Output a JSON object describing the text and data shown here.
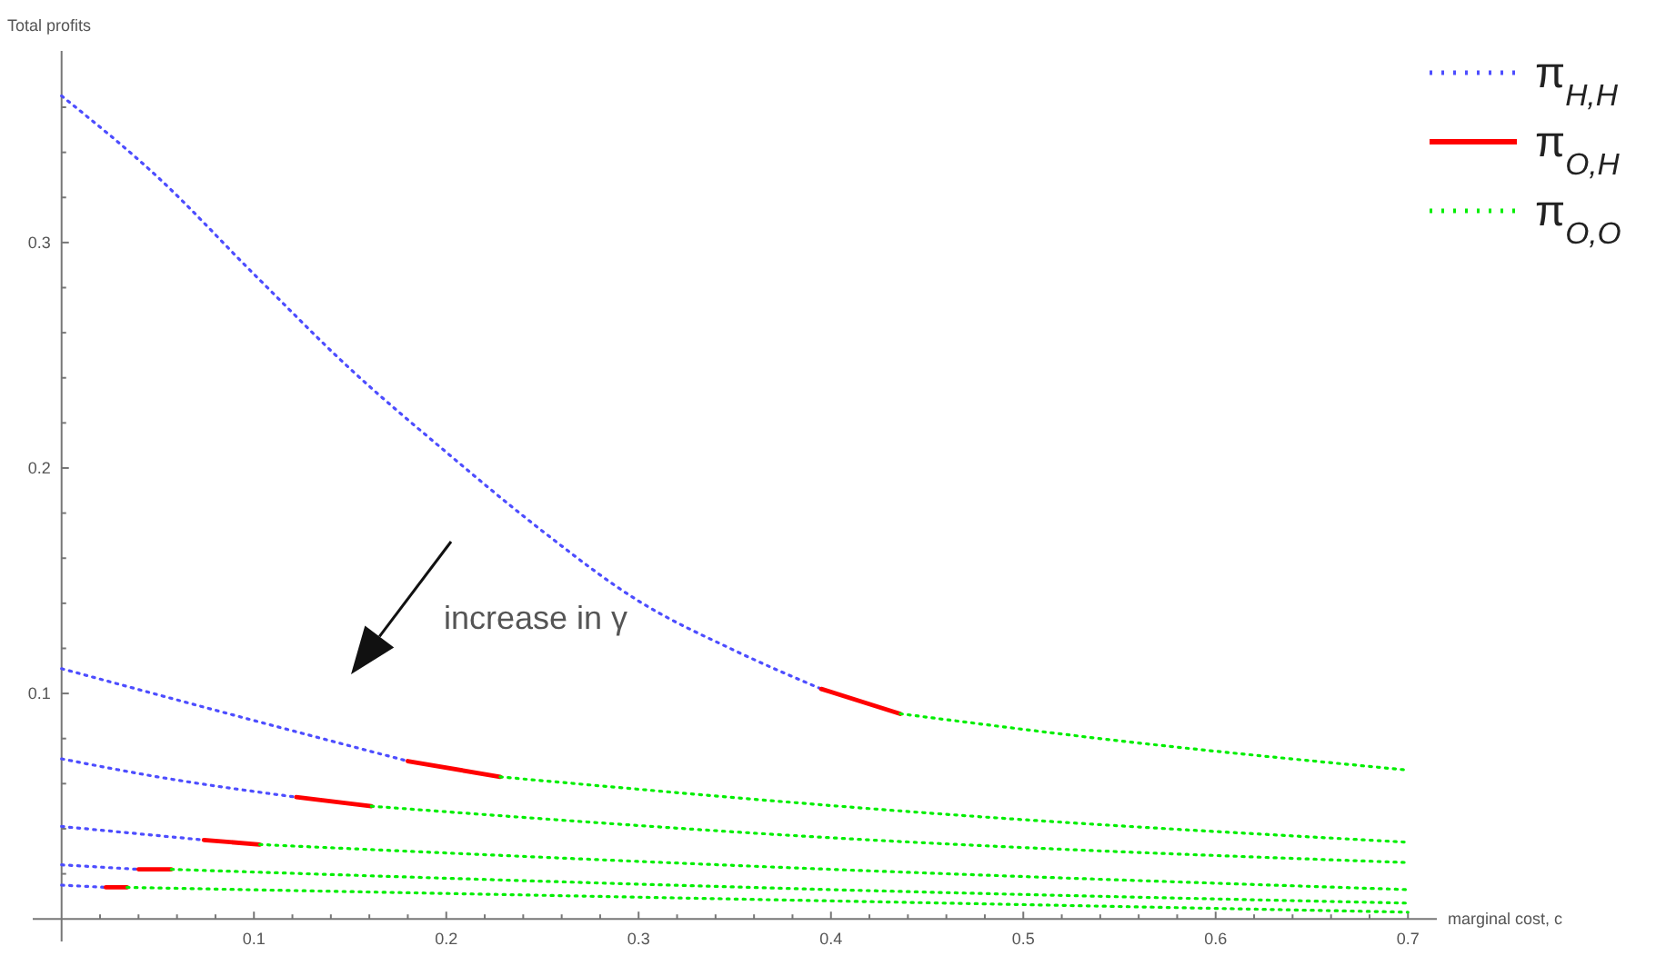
{
  "chart_data": {
    "type": "line",
    "xlabel": "marginal cost, c",
    "ylabel": "Total profits",
    "annotations": [
      "increase in γ"
    ],
    "xlim": [
      -0.015,
      0.715
    ],
    "ylim": [
      -0.01,
      0.385
    ],
    "xticks": [
      {
        "value": 0.02,
        "label": null
      },
      {
        "value": 0.04,
        "label": null
      },
      {
        "value": 0.06,
        "label": null
      },
      {
        "value": 0.08,
        "label": null
      },
      0.1,
      {
        "value": 0.12,
        "label": null
      },
      {
        "value": 0.14,
        "label": null
      },
      {
        "value": 0.16,
        "label": null
      },
      {
        "value": 0.18,
        "label": null
      },
      0.2,
      {
        "value": 0.22,
        "label": null
      },
      {
        "value": 0.24,
        "label": null
      },
      {
        "value": 0.26,
        "label": null
      },
      {
        "value": 0.28,
        "label": null
      },
      0.3,
      {
        "value": 0.32,
        "label": null
      },
      {
        "value": 0.34,
        "label": null
      },
      {
        "value": 0.36,
        "label": null
      },
      {
        "value": 0.38,
        "label": null
      },
      0.4,
      {
        "value": 0.42,
        "label": null
      },
      {
        "value": 0.44,
        "label": null
      },
      {
        "value": 0.46,
        "label": null
      },
      {
        "value": 0.48,
        "label": null
      },
      0.5,
      {
        "value": 0.52,
        "label": null
      },
      {
        "value": 0.54,
        "label": null
      },
      {
        "value": 0.56,
        "label": null
      },
      {
        "value": 0.58,
        "label": null
      },
      0.6,
      {
        "value": 0.62,
        "label": null
      },
      {
        "value": 0.64,
        "label": null
      },
      {
        "value": 0.66,
        "label": null
      },
      {
        "value": 0.68,
        "label": null
      },
      0.7
    ],
    "yticks": [
      {
        "value": 0.02,
        "label": null
      },
      {
        "value": 0.04,
        "label": null
      },
      {
        "value": 0.06,
        "label": null
      },
      {
        "value": 0.08,
        "label": null
      },
      0.1,
      {
        "value": 0.12,
        "label": null
      },
      {
        "value": 0.14,
        "label": null
      },
      {
        "value": 0.16,
        "label": null
      },
      {
        "value": 0.18,
        "label": null
      },
      0.2,
      {
        "value": 0.22,
        "label": null
      },
      {
        "value": 0.24,
        "label": null
      },
      {
        "value": 0.26,
        "label": null
      },
      {
        "value": 0.28,
        "label": null
      },
      0.3,
      {
        "value": 0.32,
        "label": null
      },
      {
        "value": 0.34,
        "label": null
      },
      {
        "value": 0.36,
        "label": null
      }
    ],
    "grid": false,
    "legend": "top right",
    "marker": "none",
    "series": [
      {
        "name": "π$_{H,H}$",
        "color": "#4d4dff",
        "line_style": "dotted",
        "x": [
          0,
          0.05,
          0.1,
          0.15,
          0.2,
          0.25,
          0.3,
          0.35,
          0.395
        ],
        "values": [
          0.365,
          0.329,
          0.286,
          0.244,
          0.207,
          0.172,
          0.141,
          0.119,
          0.102
        ]
      },
      {
        "name": "π$_{O,H}$",
        "color": "#ff0000",
        "line_style": "solid",
        "x": [
          0.395,
          0.436
        ],
        "values": [
          0.102,
          0.091
        ]
      },
      {
        "name": "π$_{O,O}$",
        "color": "#00ee00",
        "line_style": "dotted",
        "x": [
          0.436,
          0.55,
          0.7
        ],
        "values": [
          0.091,
          0.079,
          0.066
        ]
      },
      {
        "color": "#4d4dff",
        "line_style": "dotted",
        "x": [
          0,
          0.1,
          0.18
        ],
        "values": [
          0.111,
          0.088,
          0.07
        ]
      },
      {
        "color": "#ff0000",
        "line_style": "solid",
        "x": [
          0.18,
          0.228
        ],
        "values": [
          0.07,
          0.063
        ]
      },
      {
        "color": "#00ee00",
        "line_style": "dotted",
        "x": [
          0.228,
          0.45,
          0.7
        ],
        "values": [
          0.063,
          0.047,
          0.034
        ]
      },
      {
        "color": "#4d4dff",
        "line_style": "dotted",
        "x": [
          0,
          0.05,
          0.122
        ],
        "values": [
          0.071,
          0.063,
          0.054
        ]
      },
      {
        "color": "#ff0000",
        "line_style": "solid",
        "x": [
          0.122,
          0.161
        ],
        "values": [
          0.054,
          0.05
        ]
      },
      {
        "color": "#00ee00",
        "line_style": "dotted",
        "x": [
          0.161,
          0.4,
          0.7
        ],
        "values": [
          0.05,
          0.036,
          0.025
        ]
      },
      {
        "color": "#4d4dff",
        "line_style": "dotted",
        "x": [
          0,
          0.074
        ],
        "values": [
          0.041,
          0.035
        ]
      },
      {
        "color": "#ff0000",
        "line_style": "solid",
        "x": [
          0.074,
          0.103
        ],
        "values": [
          0.035,
          0.033
        ]
      },
      {
        "color": "#00ee00",
        "line_style": "dotted",
        "x": [
          0.103,
          0.4,
          0.7
        ],
        "values": [
          0.033,
          0.022,
          0.013
        ]
      },
      {
        "color": "#4d4dff",
        "line_style": "dotted",
        "x": [
          0,
          0.04
        ],
        "values": [
          0.024,
          0.022
        ]
      },
      {
        "color": "#ff0000",
        "line_style": "solid",
        "x": [
          0.04,
          0.057
        ],
        "values": [
          0.022,
          0.022
        ]
      },
      {
        "color": "#00ee00",
        "line_style": "dotted",
        "x": [
          0.057,
          0.4,
          0.7
        ],
        "values": [
          0.022,
          0.013,
          0.007
        ]
      },
      {
        "color": "#4d4dff",
        "line_style": "dotted",
        "x": [
          0,
          0.023
        ],
        "values": [
          0.015,
          0.014
        ]
      },
      {
        "color": "#ff0000",
        "line_style": "solid",
        "x": [
          0.023,
          0.034
        ],
        "values": [
          0.014,
          0.014
        ]
      },
      {
        "color": "#00ee00",
        "line_style": "dotted",
        "x": [
          0.034,
          0.4,
          0.7
        ],
        "values": [
          0.014,
          0.008,
          0.003
        ]
      }
    ]
  }
}
